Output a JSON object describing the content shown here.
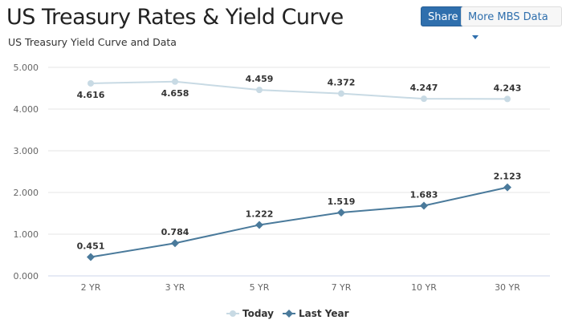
{
  "header": {
    "title": "US Treasury Rates & Yield Curve",
    "subtitle": "US Treasury Yield Curve and Data",
    "share_label": "Share",
    "more_label": "More MBS Data"
  },
  "colors": {
    "today": "#c8dae4",
    "last_year": "#4a7a9b",
    "grid": "#e6e6e6"
  },
  "chart_data": {
    "type": "line",
    "categories": [
      "2 YR",
      "3 YR",
      "5 YR",
      "7 YR",
      "10 YR",
      "30 YR"
    ],
    "series": [
      {
        "name": "Today",
        "values": [
          4.616,
          4.658,
          4.459,
          4.372,
          4.247,
          4.243
        ],
        "labels": [
          "4.616",
          "4.658",
          "4.459",
          "4.372",
          "4.247",
          "4.243"
        ]
      },
      {
        "name": "Last Year",
        "values": [
          0.451,
          0.784,
          1.222,
          1.519,
          1.683,
          2.123
        ],
        "labels": [
          "0.451",
          "0.784",
          "1.222",
          "1.519",
          "1.683",
          "2.123"
        ]
      }
    ],
    "yticks": [
      "0.000",
      "1.000",
      "2.000",
      "3.000",
      "4.000",
      "5.000"
    ],
    "ylim": [
      0,
      5
    ],
    "grid": true,
    "legend": "bottom-center"
  }
}
